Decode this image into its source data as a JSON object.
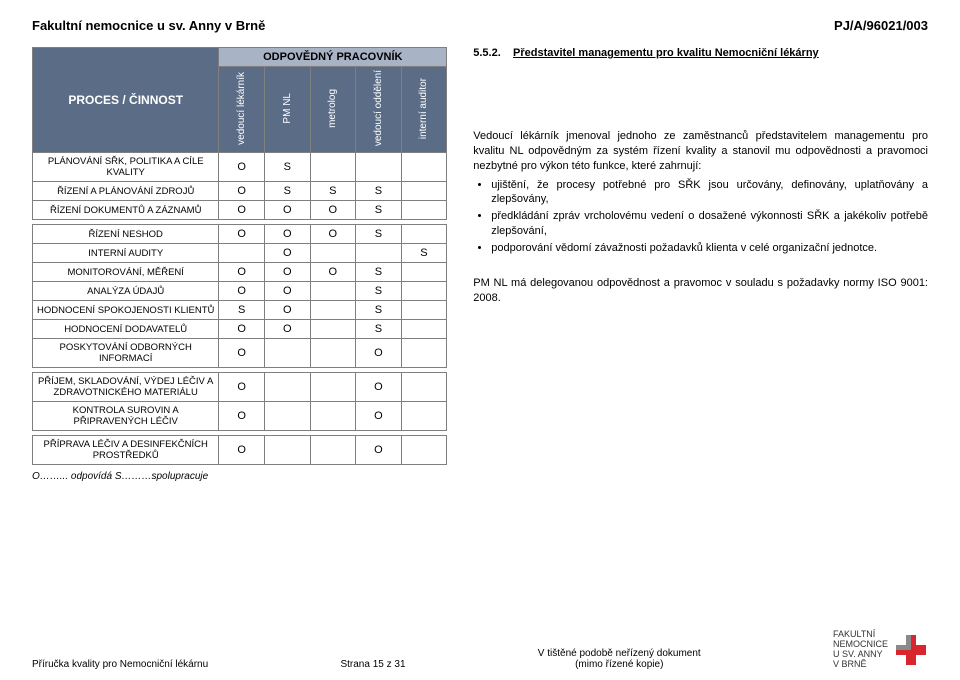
{
  "header": {
    "left": "Fakultní nemocnice u sv. Anny v Brně",
    "right": "PJ/A/96021/003"
  },
  "table": {
    "group_header": "ODPOVĚDNÝ PRACOVNÍK",
    "row_header": "PROCES / ČINNOST",
    "columns": [
      "vedoucí lékárník",
      "PM NL",
      "metrolog",
      "vedoucí oddělení",
      "interní auditor"
    ],
    "rows": [
      {
        "label": "PLÁNOVÁNÍ SŘK, POLITIKA A CÍLE KVALITY",
        "cells": [
          "O",
          "S",
          "",
          "",
          ""
        ]
      },
      {
        "label": "ŘÍZENÍ A PLÁNOVÁNÍ ZDROJŮ",
        "cells": [
          "O",
          "S",
          "S",
          "S",
          ""
        ]
      },
      {
        "label": "ŘÍZENÍ DOKUMENTŮ A ZÁZNAMŮ",
        "cells": [
          "O",
          "O",
          "O",
          "S",
          ""
        ]
      },
      {
        "label": "ŘÍZENÍ NESHOD",
        "cells": [
          "O",
          "O",
          "O",
          "S",
          ""
        ]
      },
      {
        "label": "INTERNÍ AUDITY",
        "cells": [
          "",
          "O",
          "",
          "",
          "S"
        ]
      },
      {
        "label": "MONITOROVÁNÍ, MĚŘENÍ",
        "cells": [
          "O",
          "O",
          "O",
          "S",
          ""
        ]
      },
      {
        "label": "ANALÝZA ÚDAJŮ",
        "cells": [
          "O",
          "O",
          "",
          "S",
          ""
        ]
      },
      {
        "label": "HODNOCENÍ SPOKOJENOSTI KLIENTŮ",
        "cells": [
          "S",
          "O",
          "",
          "S",
          ""
        ]
      },
      {
        "label": "HODNOCENÍ DODAVATELŮ",
        "cells": [
          "O",
          "O",
          "",
          "S",
          ""
        ]
      },
      {
        "label": "POSKYTOVÁNÍ ODBORNÝCH INFORMACÍ",
        "cells": [
          "O",
          "",
          "",
          "O",
          ""
        ]
      },
      {
        "label": "PŘÍJEM, SKLADOVÁNÍ, VÝDEJ LÉČIV A ZDRAVOTNICKÉHO MATERIÁLU",
        "cells": [
          "O",
          "",
          "",
          "O",
          ""
        ]
      },
      {
        "label": "KONTROLA SUROVIN A PŘIPRAVENÝCH LÉČIV",
        "cells": [
          "O",
          "",
          "",
          "O",
          ""
        ]
      },
      {
        "label": "PŘÍPRAVA LÉČIV A DESINFEKČNÍCH PROSTŘEDKŮ",
        "cells": [
          "O",
          "",
          "",
          "O",
          ""
        ]
      }
    ],
    "legend": "O……... odpovídá        S………spolupracuje"
  },
  "right": {
    "heading_num": "5.5.2.",
    "heading_txt": "Představitel managementu pro kvalitu Nemocniční lékárny",
    "para": "Vedoucí lékárník jmenoval jednoho ze zaměstnanců představitelem managementu pro kvalitu NL odpovědným za systém řízení kvality a stanovil mu odpovědnosti a pravomoci nezbytné pro výkon této funkce, které zahrnují:",
    "bullets": [
      "ujištění, že procesy potřebné pro SŘK jsou určovány, definovány, uplatňovány a zlepšovány,",
      "předkládání zpráv vrcholovému vedení o dosažené výkonnosti SŘK a jakékoliv potřebě zlepšování,",
      "podporování vědomí závažnosti požadavků klienta v celé organizační jednotce."
    ],
    "para2": "PM NL má delegovanou odpovědnost a pravomoc v souladu s požadavky normy ISO 9001: 2008."
  },
  "footer": {
    "left": "Příručka kvality pro Nemocniční lékárnu",
    "mid": "Strana 15 z 31",
    "right1": "V tištěné podobě neřízený dokument",
    "right2": "(mimo řízené kopie)",
    "logo_lines": [
      "FAKULTNÍ",
      "NEMOCNICE",
      "U SV. ANNY",
      "V BRNĚ"
    ]
  },
  "style": {
    "header_bg": "#5b6c86",
    "subheader_bg": "#a8b3c5",
    "border": "#7f7f7f",
    "logo_red": "#d9262e",
    "logo_gray": "#8a8a8a"
  }
}
